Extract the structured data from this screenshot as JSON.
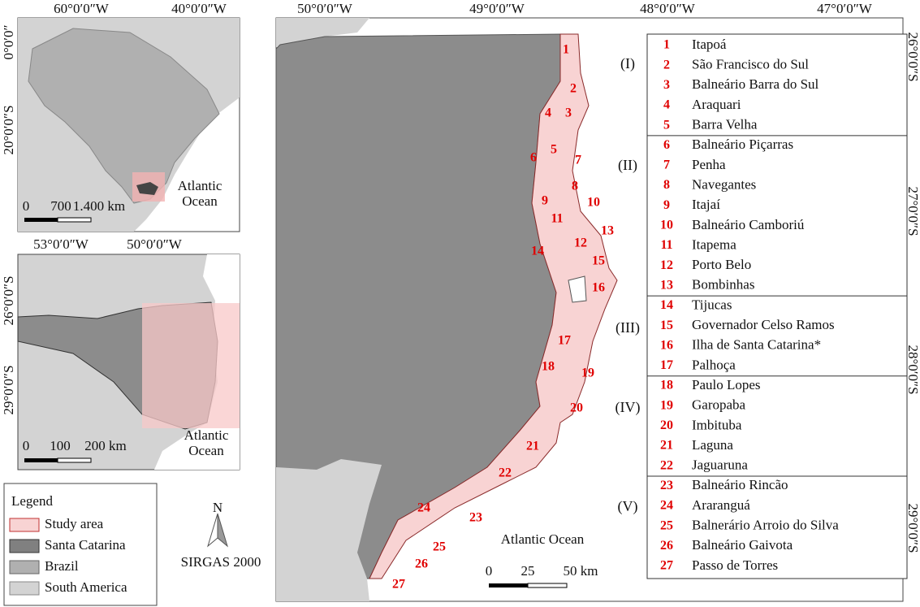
{
  "inset_brazil": {
    "lon_labels": [
      "60°0′0″W",
      "40°0′0″W"
    ],
    "lat_labels": [
      "0°0′0″",
      "20°0′0″S"
    ],
    "scale_labels": [
      "0",
      "700",
      "1.400 km"
    ],
    "ocean_label": [
      "Atlantic",
      "Ocean"
    ]
  },
  "inset_state": {
    "lon_labels": [
      "53°0′0″W",
      "50°0′0″W"
    ],
    "lat_labels": [
      "26°0′0″S",
      "29°0′0″S"
    ],
    "scale_labels": [
      "0",
      "100",
      "200 km"
    ],
    "ocean_label": [
      "Atlantic",
      "Ocean"
    ]
  },
  "legend": {
    "title": "Legend",
    "items": [
      "Study area",
      "Santa Catarina",
      "Brazil",
      "South America"
    ]
  },
  "north_label": "N",
  "datum": "SIRGAS 2000",
  "main_map": {
    "lon_labels": [
      "50°0′0″W",
      "49°0′0″W",
      "48°0′0″W",
      "47°0′0″W"
    ],
    "lat_labels": [
      "26°0′0″S",
      "27°0′0″S",
      "28°0′0″S",
      "29°0′0″S"
    ],
    "ocean_label": "Atlantic Ocean",
    "scale_labels": [
      "0",
      "25",
      "50 km"
    ]
  },
  "municipalities": {
    "groups": [
      {
        "label": "(I)",
        "items": [
          {
            "number": 1,
            "name": "Itapoá"
          },
          {
            "number": 2,
            "name": "São Francisco do Sul"
          },
          {
            "number": 3,
            "name": "Balneário Barra do Sul"
          },
          {
            "number": 4,
            "name": "Araquari"
          },
          {
            "number": 5,
            "name": "Barra Velha"
          }
        ]
      },
      {
        "label": "(II)",
        "items": [
          {
            "number": 6,
            "name": "Balneário Piçarras"
          },
          {
            "number": 7,
            "name": "Penha"
          },
          {
            "number": 8,
            "name": "Navegantes"
          },
          {
            "number": 9,
            "name": "Itajaí"
          },
          {
            "number": 10,
            "name": "Balneário Camboriú"
          },
          {
            "number": 11,
            "name": "Itapema"
          },
          {
            "number": 12,
            "name": "Porto Belo"
          },
          {
            "number": 13,
            "name": "Bombinhas"
          }
        ]
      },
      {
        "label": "(III)",
        "items": [
          {
            "number": 14,
            "name": "Tijucas"
          },
          {
            "number": 15,
            "name": "Governador Celso Ramos"
          },
          {
            "number": 16,
            "name": "Ilha de Santa Catarina*"
          },
          {
            "number": 17,
            "name": "Palhoça"
          }
        ]
      },
      {
        "label": "(IV)",
        "items": [
          {
            "number": 18,
            "name": "Paulo Lopes"
          },
          {
            "number": 19,
            "name": "Garopaba"
          },
          {
            "number": 20,
            "name": "Imbituba"
          },
          {
            "number": 21,
            "name": "Laguna"
          },
          {
            "number": 22,
            "name": "Jaguaruna"
          }
        ]
      },
      {
        "label": "(V)",
        "items": [
          {
            "number": 23,
            "name": "Balneário Rincão"
          },
          {
            "number": 24,
            "name": "Araranguá"
          },
          {
            "number": 25,
            "name": "Balnerário Arroio do Silva"
          },
          {
            "number": 26,
            "name": "Balneário Gaivota"
          },
          {
            "number": 27,
            "name": "Passo de Torres"
          }
        ]
      }
    ]
  }
}
